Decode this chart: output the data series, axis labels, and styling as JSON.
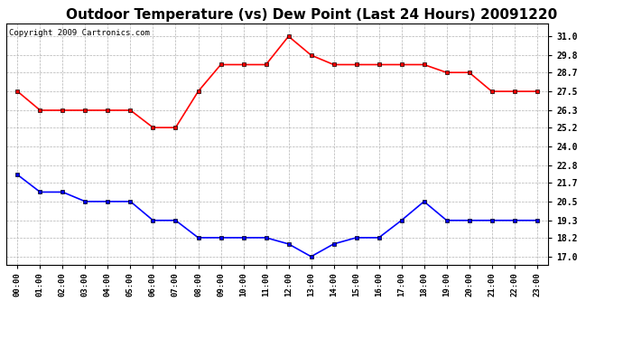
{
  "title": "Outdoor Temperature (vs) Dew Point (Last 24 Hours) 20091220",
  "copyright": "Copyright 2009 Cartronics.com",
  "hours": [
    "00:00",
    "01:00",
    "02:00",
    "03:00",
    "04:00",
    "05:00",
    "06:00",
    "07:00",
    "08:00",
    "09:00",
    "10:00",
    "11:00",
    "12:00",
    "13:00",
    "14:00",
    "15:00",
    "16:00",
    "17:00",
    "18:00",
    "19:00",
    "20:00",
    "21:00",
    "22:00",
    "23:00"
  ],
  "temp": [
    27.5,
    26.3,
    26.3,
    26.3,
    26.3,
    26.3,
    25.2,
    25.2,
    27.5,
    29.2,
    29.2,
    29.2,
    31.0,
    29.8,
    29.2,
    29.2,
    29.2,
    29.2,
    29.2,
    28.7,
    28.7,
    27.5,
    27.5,
    27.5
  ],
  "dew": [
    22.2,
    21.1,
    21.1,
    20.5,
    20.5,
    20.5,
    19.3,
    19.3,
    18.2,
    18.2,
    18.2,
    18.2,
    17.8,
    17.0,
    17.8,
    18.2,
    18.2,
    19.3,
    20.5,
    19.3,
    19.3,
    19.3,
    19.3,
    19.3
  ],
  "temp_color": "red",
  "dew_color": "blue",
  "yticks": [
    17.0,
    18.2,
    19.3,
    20.5,
    21.7,
    22.8,
    24.0,
    25.2,
    26.3,
    27.5,
    28.7,
    29.8,
    31.0
  ],
  "ymin": 16.5,
  "ymax": 31.8,
  "bg_color": "#ffffff",
  "plot_bg": "#ffffff",
  "title_fontsize": 11,
  "copyright_fontsize": 6.5
}
